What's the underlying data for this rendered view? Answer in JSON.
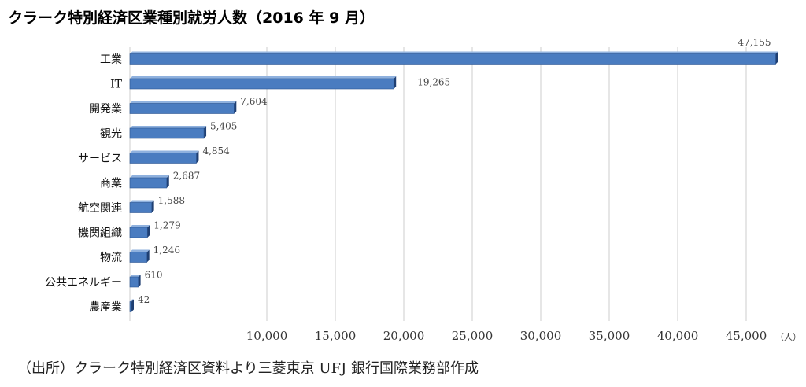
{
  "chart_data": {
    "type": "bar",
    "orientation": "horizontal",
    "title": "クラーク特別経済区業種別就労人数（2016 年 9 月）",
    "source": "（出所）クラーク特別経済区資料より三菱東京 UFJ 銀行国際業務部作成",
    "unit": "（人）",
    "categories": [
      "工業",
      "IT",
      "開発業",
      "観光",
      "サービス",
      "商業",
      "航空関連",
      "機関組織",
      "物流",
      "公共エネルギー",
      "農産業"
    ],
    "values": [
      47155,
      19265,
      7604,
      5405,
      4854,
      2687,
      1588,
      1279,
      1246,
      610,
      42
    ],
    "data_labels": [
      "47,155",
      "19,265",
      "7,604",
      "5,405",
      "4,854",
      "2,687",
      "1,588",
      "1,279",
      "1,246",
      "610",
      "42"
    ],
    "x_ticks": [
      10000,
      15000,
      20000,
      25000,
      30000,
      35000,
      40000,
      45000
    ],
    "x_tick_labels": [
      "10,000",
      "15,000",
      "20,000",
      "25,000",
      "30,000",
      "35,000",
      "40,000",
      "45,000"
    ],
    "grid": true,
    "bar_color": "#4a7cc0"
  }
}
